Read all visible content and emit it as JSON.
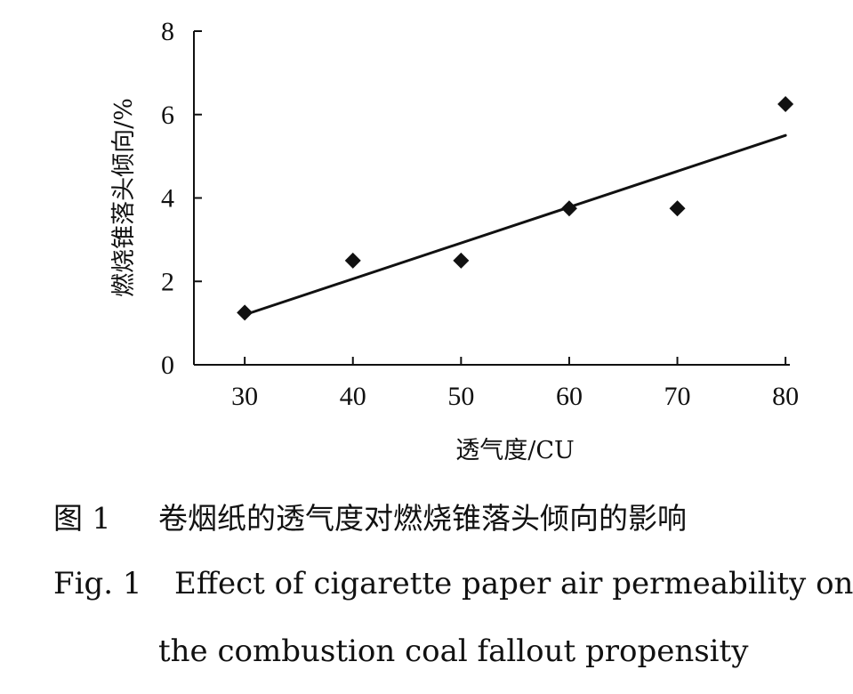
{
  "chart_data": {
    "type": "scatter",
    "xlabel": "透气度/CU",
    "ylabel": "燃烧锥落头倾向/%",
    "x_ticks": [
      "30",
      "40",
      "50",
      "60",
      "70",
      "80"
    ],
    "y_ticks": [
      "0",
      "2",
      "4",
      "6",
      "8"
    ],
    "xlim": [
      25.3,
      80.4
    ],
    "ylim": [
      0,
      8
    ],
    "points": [
      {
        "x": 30,
        "y": 1.25
      },
      {
        "x": 40,
        "y": 2.5
      },
      {
        "x": 50,
        "y": 2.5
      },
      {
        "x": 60,
        "y": 3.75
      },
      {
        "x": 70,
        "y": 3.75
      },
      {
        "x": 80,
        "y": 6.25
      }
    ],
    "trendline": [
      {
        "x": 30,
        "y": 1.2
      },
      {
        "x": 80,
        "y": 5.5
      }
    ],
    "grid": false,
    "legend": "none"
  },
  "caption": {
    "cn_label": "图 1",
    "cn_text": "卷烟纸的透气度对燃烧锥落头倾向的影响",
    "en_label": "Fig. 1",
    "en_text_line1": "Effect of cigarette paper air permeability on",
    "en_text_line2": "the combustion coal fallout propensity"
  },
  "colors": {
    "ink": "#111111",
    "background": "#ffffff"
  }
}
